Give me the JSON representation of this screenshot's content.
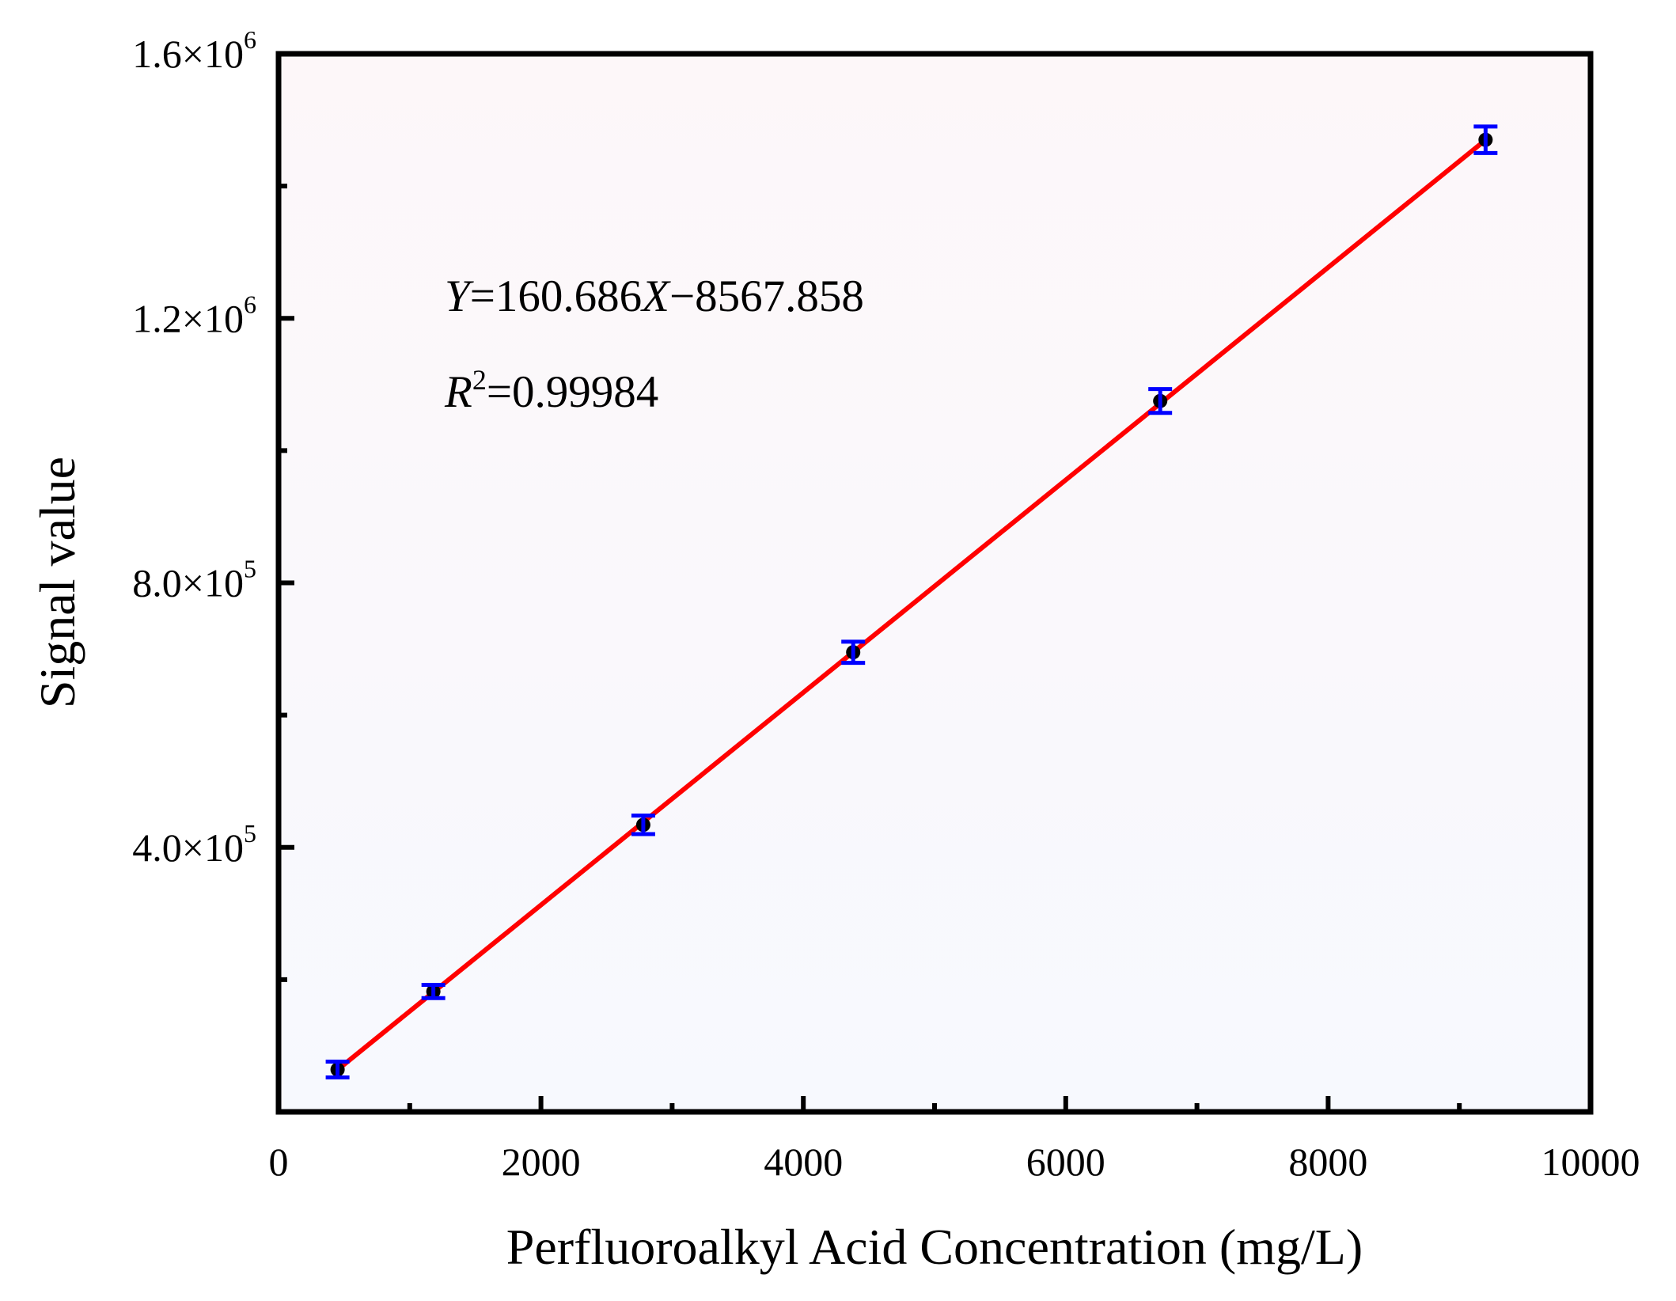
{
  "chart_data": {
    "type": "scatter",
    "title": "",
    "xlabel": "Perfluoroalkyl Acid Concentration (mg/L)",
    "ylabel": "Signal value",
    "xlim": [
      0,
      10000
    ],
    "ylim": [
      0,
      1600000
    ],
    "x_ticks": [
      0,
      2000,
      4000,
      6000,
      8000,
      10000
    ],
    "x_tick_labels": [
      "0",
      "2000",
      "4000",
      "6000",
      "8000",
      "10000"
    ],
    "y_ticks": [
      400000,
      800000,
      1200000,
      1600000
    ],
    "y_tick_labels": [
      {
        "mantissa": "4.0",
        "times": "×10",
        "exp": "5"
      },
      {
        "mantissa": "8.0",
        "times": "×10",
        "exp": "5"
      },
      {
        "mantissa": "1.2",
        "times": "×10",
        "exp": "6"
      },
      {
        "mantissa": "1.6",
        "times": "×10",
        "exp": "6"
      }
    ],
    "series": [
      {
        "x": [
          450,
          1180,
          2780,
          4380,
          6720,
          9200
        ],
        "y": [
          64000,
          182000,
          434000,
          695000,
          1075000,
          1470000
        ],
        "err": [
          12000,
          10000,
          14000,
          16000,
          18000,
          20000
        ],
        "point_color": "#000000",
        "error_color": "#0000ff"
      }
    ],
    "fit": {
      "slope": 160.686,
      "intercept": -8567.858,
      "x_range": [
        450,
        9200
      ],
      "color": "#ff0000"
    },
    "annotations": {
      "equation": {
        "Y": "Y",
        "eq": "=160.686",
        "X": "X",
        "rest": "−8567.858"
      },
      "r2": {
        "R": "R",
        "sup": "2",
        "rest": "=0.99984"
      }
    },
    "plot_background_top": "#fdf7f9",
    "plot_background_bottom": "#f7f9fe",
    "grid": false,
    "legend": "none"
  }
}
